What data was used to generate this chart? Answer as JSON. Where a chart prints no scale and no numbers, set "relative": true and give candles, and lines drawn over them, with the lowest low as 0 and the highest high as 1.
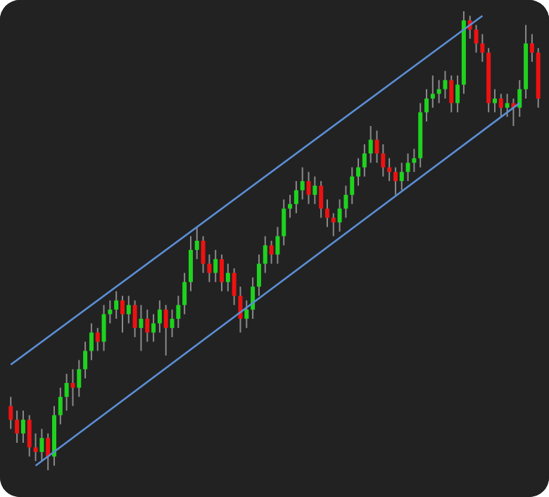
{
  "chart_data": {
    "type": "candlestick",
    "relative": true,
    "categories": [
      null,
      null,
      null,
      null,
      null,
      null,
      null,
      null,
      null,
      null,
      null,
      null,
      null,
      null,
      null,
      null,
      null,
      null,
      null,
      null,
      null,
      null,
      null,
      null,
      null,
      null,
      null,
      null,
      null,
      null,
      null,
      null,
      null,
      null,
      null,
      null,
      null,
      null,
      null,
      null,
      null,
      null,
      null,
      null,
      null,
      null,
      null,
      null,
      null,
      null,
      null,
      null,
      null,
      null,
      null,
      null,
      null,
      null,
      null,
      null,
      null,
      null,
      null,
      null,
      null,
      null,
      null,
      null,
      null,
      null,
      null,
      null,
      null,
      null,
      null,
      null,
      null,
      null,
      null,
      null,
      null,
      null,
      null,
      null,
      null,
      null
    ],
    "ohlc": [
      [
        0.14,
        0.16,
        0.09,
        0.11
      ],
      [
        0.11,
        0.13,
        0.06,
        0.08
      ],
      [
        0.08,
        0.13,
        0.06,
        0.11
      ],
      [
        0.11,
        0.12,
        0.03,
        0.05
      ],
      [
        0.05,
        0.08,
        0.02,
        0.04
      ],
      [
        0.04,
        0.09,
        0.02,
        0.07
      ],
      [
        0.07,
        0.08,
        0.0,
        0.03
      ],
      [
        0.03,
        0.14,
        0.01,
        0.12
      ],
      [
        0.12,
        0.18,
        0.1,
        0.16
      ],
      [
        0.16,
        0.21,
        0.13,
        0.19
      ],
      [
        0.19,
        0.22,
        0.14,
        0.18
      ],
      [
        0.18,
        0.24,
        0.16,
        0.22
      ],
      [
        0.22,
        0.28,
        0.2,
        0.26
      ],
      [
        0.26,
        0.32,
        0.24,
        0.3
      ],
      [
        0.3,
        0.31,
        0.26,
        0.28
      ],
      [
        0.28,
        0.36,
        0.26,
        0.34
      ],
      [
        0.34,
        0.37,
        0.32,
        0.35
      ],
      [
        0.35,
        0.39,
        0.33,
        0.37
      ],
      [
        0.37,
        0.38,
        0.3,
        0.34
      ],
      [
        0.34,
        0.38,
        0.32,
        0.36
      ],
      [
        0.36,
        0.37,
        0.29,
        0.31
      ],
      [
        0.31,
        0.36,
        0.26,
        0.33
      ],
      [
        0.33,
        0.35,
        0.28,
        0.3
      ],
      [
        0.3,
        0.34,
        0.28,
        0.32
      ],
      [
        0.32,
        0.37,
        0.3,
        0.35
      ],
      [
        0.35,
        0.36,
        0.25,
        0.31
      ],
      [
        0.31,
        0.35,
        0.29,
        0.33
      ],
      [
        0.33,
        0.38,
        0.31,
        0.36
      ],
      [
        0.36,
        0.43,
        0.34,
        0.41
      ],
      [
        0.41,
        0.51,
        0.39,
        0.48
      ],
      [
        0.48,
        0.53,
        0.46,
        0.5
      ],
      [
        0.5,
        0.51,
        0.43,
        0.45
      ],
      [
        0.45,
        0.47,
        0.41,
        0.43
      ],
      [
        0.43,
        0.48,
        0.41,
        0.46
      ],
      [
        0.46,
        0.47,
        0.39,
        0.41
      ],
      [
        0.41,
        0.45,
        0.39,
        0.43
      ],
      [
        0.43,
        0.44,
        0.36,
        0.38
      ],
      [
        0.38,
        0.4,
        0.3,
        0.33
      ],
      [
        0.33,
        0.37,
        0.31,
        0.35
      ],
      [
        0.35,
        0.42,
        0.33,
        0.4
      ],
      [
        0.4,
        0.47,
        0.38,
        0.45
      ],
      [
        0.45,
        0.51,
        0.43,
        0.49
      ],
      [
        0.49,
        0.5,
        0.45,
        0.47
      ],
      [
        0.47,
        0.53,
        0.45,
        0.51
      ],
      [
        0.51,
        0.59,
        0.49,
        0.57
      ],
      [
        0.57,
        0.6,
        0.55,
        0.58
      ],
      [
        0.58,
        0.63,
        0.56,
        0.61
      ],
      [
        0.61,
        0.66,
        0.59,
        0.63
      ],
      [
        0.63,
        0.65,
        0.58,
        0.6
      ],
      [
        0.6,
        0.64,
        0.58,
        0.62
      ],
      [
        0.62,
        0.63,
        0.55,
        0.57
      ],
      [
        0.57,
        0.59,
        0.53,
        0.55
      ],
      [
        0.55,
        0.56,
        0.51,
        0.54
      ],
      [
        0.54,
        0.59,
        0.52,
        0.57
      ],
      [
        0.57,
        0.62,
        0.55,
        0.6
      ],
      [
        0.6,
        0.66,
        0.58,
        0.64
      ],
      [
        0.64,
        0.68,
        0.62,
        0.66
      ],
      [
        0.66,
        0.71,
        0.64,
        0.69
      ],
      [
        0.69,
        0.75,
        0.67,
        0.72
      ],
      [
        0.72,
        0.74,
        0.67,
        0.69
      ],
      [
        0.69,
        0.71,
        0.64,
        0.66
      ],
      [
        0.66,
        0.68,
        0.63,
        0.65
      ],
      [
        0.65,
        0.66,
        0.6,
        0.63
      ],
      [
        0.63,
        0.67,
        0.61,
        0.65
      ],
      [
        0.65,
        0.69,
        0.63,
        0.67
      ],
      [
        0.67,
        0.7,
        0.65,
        0.68
      ],
      [
        0.68,
        0.8,
        0.66,
        0.78
      ],
      [
        0.78,
        0.83,
        0.76,
        0.81
      ],
      [
        0.81,
        0.86,
        0.79,
        0.82
      ],
      [
        0.82,
        0.85,
        0.8,
        0.83
      ],
      [
        0.83,
        0.87,
        0.81,
        0.85
      ],
      [
        0.85,
        0.86,
        0.78,
        0.8
      ],
      [
        0.8,
        0.86,
        0.78,
        0.84
      ],
      [
        0.84,
        1.0,
        0.82,
        0.98
      ],
      [
        0.98,
        0.99,
        0.94,
        0.96
      ],
      [
        0.96,
        0.97,
        0.91,
        0.93
      ],
      [
        0.93,
        0.95,
        0.89,
        0.91
      ],
      [
        0.91,
        0.92,
        0.78,
        0.8
      ],
      [
        0.8,
        0.83,
        0.78,
        0.81
      ],
      [
        0.81,
        0.82,
        0.77,
        0.79
      ],
      [
        0.79,
        0.82,
        0.77,
        0.8
      ],
      [
        0.8,
        0.81,
        0.75,
        0.79
      ],
      [
        0.79,
        0.85,
        0.77,
        0.83
      ],
      [
        0.83,
        0.97,
        0.81,
        0.93
      ],
      [
        0.93,
        0.95,
        0.89,
        0.91
      ],
      [
        0.91,
        0.92,
        0.79,
        0.81
      ]
    ],
    "series": [
      {
        "type": "line",
        "color": "#5b8fd6",
        "values": [
          0.23,
          null,
          null,
          null,
          null,
          null,
          null,
          null,
          null,
          null,
          null,
          null,
          null,
          null,
          null,
          null,
          null,
          null,
          null,
          null,
          null,
          null,
          null,
          null,
          null,
          null,
          null,
          null,
          null,
          null,
          null,
          null,
          null,
          null,
          null,
          null,
          null,
          null,
          null,
          null,
          null,
          null,
          null,
          null,
          null,
          null,
          null,
          null,
          null,
          null,
          null,
          null,
          null,
          null,
          null,
          null,
          null,
          null,
          null,
          null,
          null,
          null,
          null,
          null,
          null,
          null,
          null,
          null,
          null,
          null,
          null,
          null,
          null,
          null,
          null,
          null,
          0.99,
          null,
          null,
          null,
          null,
          null,
          null,
          null,
          null,
          null
        ]
      },
      {
        "type": "line",
        "color": "#5b8fd6",
        "values": [
          null,
          null,
          null,
          null,
          0.01,
          null,
          null,
          null,
          null,
          null,
          null,
          null,
          null,
          null,
          null,
          null,
          null,
          null,
          null,
          null,
          null,
          null,
          null,
          null,
          null,
          null,
          null,
          null,
          null,
          null,
          null,
          null,
          null,
          null,
          null,
          null,
          null,
          null,
          null,
          null,
          null,
          null,
          null,
          null,
          null,
          null,
          null,
          null,
          null,
          null,
          null,
          null,
          null,
          null,
          null,
          null,
          null,
          null,
          null,
          null,
          null,
          null,
          null,
          null,
          null,
          null,
          null,
          null,
          null,
          null,
          null,
          null,
          null,
          null,
          null,
          null,
          null,
          null,
          null,
          null,
          null,
          null,
          0.8,
          null,
          null,
          null
        ]
      }
    ]
  }
}
